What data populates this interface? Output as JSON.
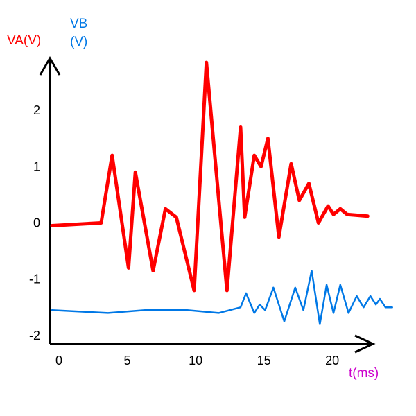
{
  "chart_data": {
    "type": "line",
    "ylabel_a": "VA(V)",
    "ylabel_b_line1": "VB",
    "ylabel_b_line2": "(V)",
    "xlabel": "t(ms)",
    "xlim": [
      0,
      24
    ],
    "ylim": [
      -2.15,
      2.95
    ],
    "x_ticks": [
      {
        "value": 0,
        "label": "0"
      },
      {
        "value": 5,
        "label": "5"
      },
      {
        "value": 10,
        "label": "10"
      },
      {
        "value": 15,
        "label": "15"
      },
      {
        "value": 20,
        "label": "20"
      }
    ],
    "y_ticks": [
      {
        "value": 2,
        "label": "2"
      },
      {
        "value": 1,
        "label": "1"
      },
      {
        "value": 0,
        "label": "0"
      },
      {
        "value": -1,
        "label": "-1"
      },
      {
        "value": -2,
        "label": "-2"
      }
    ],
    "series": [
      {
        "name": "VA(V)",
        "color": "#ff0000",
        "points": [
          [
            0,
            -0.05
          ],
          [
            3.6,
            0.0
          ],
          [
            4.4,
            1.2
          ],
          [
            5.6,
            -0.8
          ],
          [
            6.1,
            0.9
          ],
          [
            7.4,
            -0.85
          ],
          [
            8.3,
            0.25
          ],
          [
            9.1,
            0.1
          ],
          [
            10.4,
            -1.2
          ],
          [
            11.3,
            2.85
          ],
          [
            12.8,
            -1.2
          ],
          [
            13.8,
            1.7
          ],
          [
            14.1,
            0.1
          ],
          [
            14.8,
            1.2
          ],
          [
            15.3,
            1.0
          ],
          [
            15.8,
            1.5
          ],
          [
            16.6,
            -0.25
          ],
          [
            17.5,
            1.05
          ],
          [
            18.1,
            0.4
          ],
          [
            18.8,
            0.7
          ],
          [
            19.5,
            0.0
          ],
          [
            20.2,
            0.3
          ],
          [
            20.6,
            0.15
          ],
          [
            21.1,
            0.25
          ],
          [
            21.6,
            0.15
          ],
          [
            23.1,
            0.12
          ]
        ]
      },
      {
        "name": "VB(V)",
        "color": "#0078e6",
        "points": [
          [
            0,
            -1.55
          ],
          [
            4.1,
            -1.6
          ],
          [
            6.8,
            -1.55
          ],
          [
            9.9,
            -1.55
          ],
          [
            12.2,
            -1.6
          ],
          [
            13.8,
            -1.5
          ],
          [
            14.2,
            -1.25
          ],
          [
            14.8,
            -1.6
          ],
          [
            15.2,
            -1.45
          ],
          [
            15.6,
            -1.55
          ],
          [
            16.2,
            -1.15
          ],
          [
            17.0,
            -1.75
          ],
          [
            17.8,
            -1.15
          ],
          [
            18.4,
            -1.55
          ],
          [
            19.0,
            -0.85
          ],
          [
            19.6,
            -1.8
          ],
          [
            20.1,
            -1.1
          ],
          [
            20.6,
            -1.6
          ],
          [
            21.1,
            -1.1
          ],
          [
            21.7,
            -1.6
          ],
          [
            22.3,
            -1.3
          ],
          [
            22.8,
            -1.5
          ],
          [
            23.3,
            -1.3
          ],
          [
            23.7,
            -1.45
          ],
          [
            24.0,
            -1.35
          ],
          [
            24.4,
            -1.5
          ],
          [
            24.9,
            -1.5
          ]
        ]
      }
    ]
  },
  "colors": {
    "axis": "#000000",
    "ylabel_a": "#ff0000",
    "ylabel_b": "#0078e6",
    "xlabel": "#cc00cc"
  }
}
